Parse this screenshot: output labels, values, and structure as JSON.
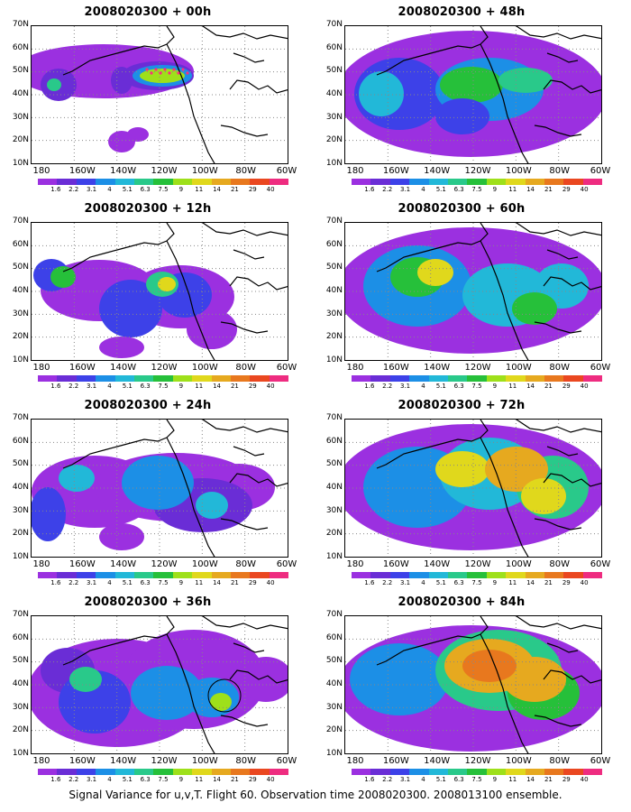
{
  "palette": [
    "#9b30e0",
    "#6a2dd6",
    "#3d41e8",
    "#1c8fe6",
    "#22b8d8",
    "#29c98a",
    "#26c03a",
    "#9ee01a",
    "#e0d81c",
    "#e6a91f",
    "#e8781e",
    "#ea4720",
    "#ee2c80"
  ],
  "colorbar_labels": [
    "1.6",
    "2.2",
    "3.1",
    "4",
    "5.1",
    "6.3",
    "7.5",
    "9",
    "11",
    "14",
    "21",
    "29",
    "40"
  ],
  "caption": "Signal Variance for u,v,T. Flight 60. Observation time 2008020300. 2008013100 ensemble.",
  "chart_data": [
    {
      "type": "heatmap",
      "title": "2008020300 + 00h",
      "x_ticks": [
        "180",
        "160W",
        "140W",
        "120W",
        "100W",
        "80W",
        "60W"
      ],
      "y_ticks": [
        "10N",
        "20N",
        "30N",
        "40N",
        "50N",
        "60N",
        "70N"
      ],
      "colorbar_labels": [
        "1.6",
        "2.2",
        "3.1",
        "4",
        "5.1",
        "6.3",
        "7.5",
        "9",
        "11",
        "14",
        "21",
        "29",
        "40"
      ]
    },
    {
      "type": "heatmap",
      "title": "2008020300 + 12h",
      "x_ticks": [
        "180",
        "160W",
        "140W",
        "120W",
        "100W",
        "80W",
        "60W"
      ],
      "y_ticks": [
        "10N",
        "20N",
        "30N",
        "40N",
        "50N",
        "60N",
        "70N"
      ],
      "colorbar_labels": [
        "1.6",
        "2.2",
        "3.1",
        "4",
        "5.1",
        "6.3",
        "7.5",
        "9",
        "11",
        "14",
        "21",
        "29",
        "40"
      ]
    },
    {
      "type": "heatmap",
      "title": "2008020300 + 24h",
      "x_ticks": [
        "180",
        "160W",
        "140W",
        "120W",
        "100W",
        "80W",
        "60W"
      ],
      "y_ticks": [
        "10N",
        "20N",
        "30N",
        "40N",
        "50N",
        "60N",
        "70N"
      ],
      "colorbar_labels": [
        "1.6",
        "2.2",
        "3.1",
        "4",
        "5.1",
        "6.3",
        "7.5",
        "9",
        "11",
        "14",
        "21",
        "29",
        "40"
      ]
    },
    {
      "type": "heatmap",
      "title": "2008020300 + 36h",
      "x_ticks": [
        "180",
        "160W",
        "140W",
        "120W",
        "100W",
        "80W",
        "60W"
      ],
      "y_ticks": [
        "10N",
        "20N",
        "30N",
        "40N",
        "50N",
        "60N",
        "70N"
      ],
      "colorbar_labels": [
        "1.6",
        "2.2",
        "3.1",
        "4",
        "5.1",
        "6.3",
        "7.5",
        "9",
        "11",
        "14",
        "21",
        "29",
        "40"
      ]
    },
    {
      "type": "heatmap",
      "title": "2008020300 + 48h",
      "x_ticks": [
        "180",
        "160W",
        "140W",
        "120W",
        "100W",
        "80W",
        "60W"
      ],
      "y_ticks": [
        "10N",
        "20N",
        "30N",
        "40N",
        "50N",
        "60N",
        "70N"
      ],
      "colorbar_labels": [
        "1.6",
        "2.2",
        "3.1",
        "4",
        "5.1",
        "6.3",
        "7.5",
        "9",
        "11",
        "14",
        "21",
        "29",
        "40"
      ]
    },
    {
      "type": "heatmap",
      "title": "2008020300 + 60h",
      "x_ticks": [
        "180",
        "160W",
        "140W",
        "120W",
        "100W",
        "80W",
        "60W"
      ],
      "y_ticks": [
        "10N",
        "20N",
        "30N",
        "40N",
        "50N",
        "60N",
        "70N"
      ],
      "colorbar_labels": [
        "1.6",
        "2.2",
        "3.1",
        "4",
        "5.1",
        "6.3",
        "7.5",
        "9",
        "11",
        "14",
        "21",
        "29",
        "40"
      ]
    },
    {
      "type": "heatmap",
      "title": "2008020300 + 72h",
      "x_ticks": [
        "180",
        "160W",
        "140W",
        "120W",
        "100W",
        "80W",
        "60W"
      ],
      "y_ticks": [
        "10N",
        "20N",
        "30N",
        "40N",
        "50N",
        "60N",
        "70N"
      ],
      "colorbar_labels": [
        "1.6",
        "2.2",
        "3.1",
        "4",
        "5.1",
        "6.3",
        "7.5",
        "9",
        "11",
        "14",
        "21",
        "29",
        "40"
      ]
    },
    {
      "type": "heatmap",
      "title": "2008020300 + 84h",
      "x_ticks": [
        "180",
        "160W",
        "140W",
        "120W",
        "100W",
        "80W",
        "60W"
      ],
      "y_ticks": [
        "10N",
        "20N",
        "30N",
        "40N",
        "50N",
        "60N",
        "70N"
      ],
      "colorbar_labels": [
        "1.6",
        "2.2",
        "3.1",
        "4",
        "5.1",
        "6.3",
        "7.5",
        "9",
        "11",
        "14",
        "21",
        "29",
        "40"
      ]
    }
  ]
}
